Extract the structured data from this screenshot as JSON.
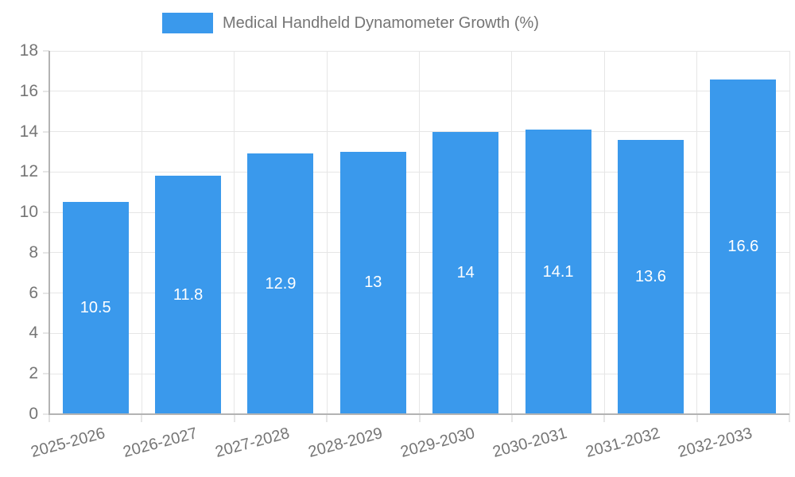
{
  "chart_data": {
    "type": "bar",
    "title": "Medical Handheld Dynamometer Growth (%)",
    "legend": {
      "position": "top",
      "label": "Medical Handheld Dynamometer Growth (%)"
    },
    "categories": [
      "2025-2026",
      "2026-2027",
      "2027-2028",
      "2028-2029",
      "2029-2030",
      "2030-2031",
      "2031-2032",
      "2032-2033"
    ],
    "values": [
      10.5,
      11.8,
      12.9,
      13,
      14,
      14.1,
      13.6,
      16.6
    ],
    "value_labels": [
      "10.5",
      "11.8",
      "12.9",
      "13",
      "14",
      "14.1",
      "13.6",
      "16.6"
    ],
    "xlabel": "",
    "ylabel": "",
    "ylim": [
      0,
      18
    ],
    "yticks": [
      0,
      2,
      4,
      6,
      8,
      10,
      12,
      14,
      16,
      18
    ],
    "grid": true,
    "x_label_rotation_deg": -15,
    "colors": {
      "bar": "#3a99ec",
      "bar_value_label": "#ffffff",
      "axis_text": "#757575",
      "grid_line": "#e6e6e6",
      "axis_line": "#b3b3b3",
      "background": "#ffffff"
    }
  }
}
